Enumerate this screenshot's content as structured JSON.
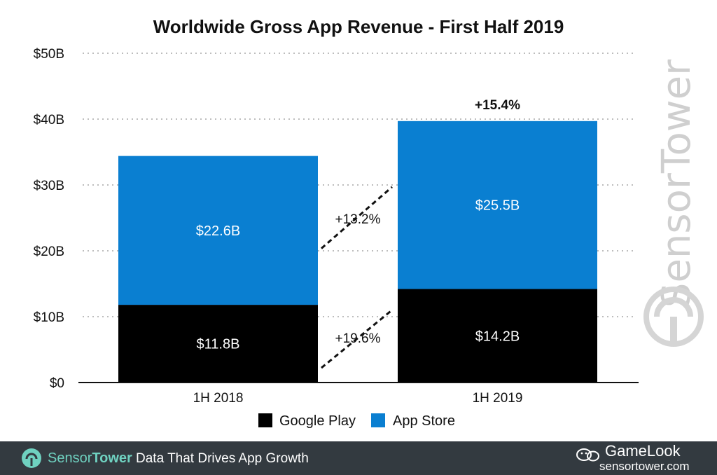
{
  "chart_data": {
    "type": "bar",
    "stacked": true,
    "title": "Worldwide Gross App Revenue - First Half 2019",
    "categories": [
      "1H 2018",
      "1H 2019"
    ],
    "series": [
      {
        "name": "Google Play",
        "values": [
          11.8,
          14.2
        ],
        "labels": [
          "$11.8B",
          "$14.2B"
        ],
        "color": "#000000"
      },
      {
        "name": "App Store",
        "values": [
          22.6,
          25.5
        ],
        "labels": [
          "$22.6B",
          "$25.5B"
        ],
        "color": "#0a7fd1"
      }
    ],
    "ylim": [
      0,
      50
    ],
    "yticks": [
      {
        "value": 0,
        "label": "$0"
      },
      {
        "value": 10,
        "label": "$10B"
      },
      {
        "value": 20,
        "label": "$20B"
      },
      {
        "value": 30,
        "label": "$30B"
      },
      {
        "value": 40,
        "label": "$40B"
      },
      {
        "value": 50,
        "label": "$50B"
      }
    ],
    "grid": true,
    "legend_position": "bottom",
    "annotations": {
      "google_play_growth": "+19.6%",
      "app_store_growth": "+13.2%",
      "total_growth": "+15.4%"
    }
  },
  "watermark": "SensorTower",
  "footer": {
    "brand_light": "Sensor",
    "brand_bold": "Tower",
    "tagline": "Data That Drives App Growth",
    "gamelook": "GameLook",
    "site": "sensortower.com",
    "background": "#333a40",
    "brand_color": "#6fd1c0"
  }
}
